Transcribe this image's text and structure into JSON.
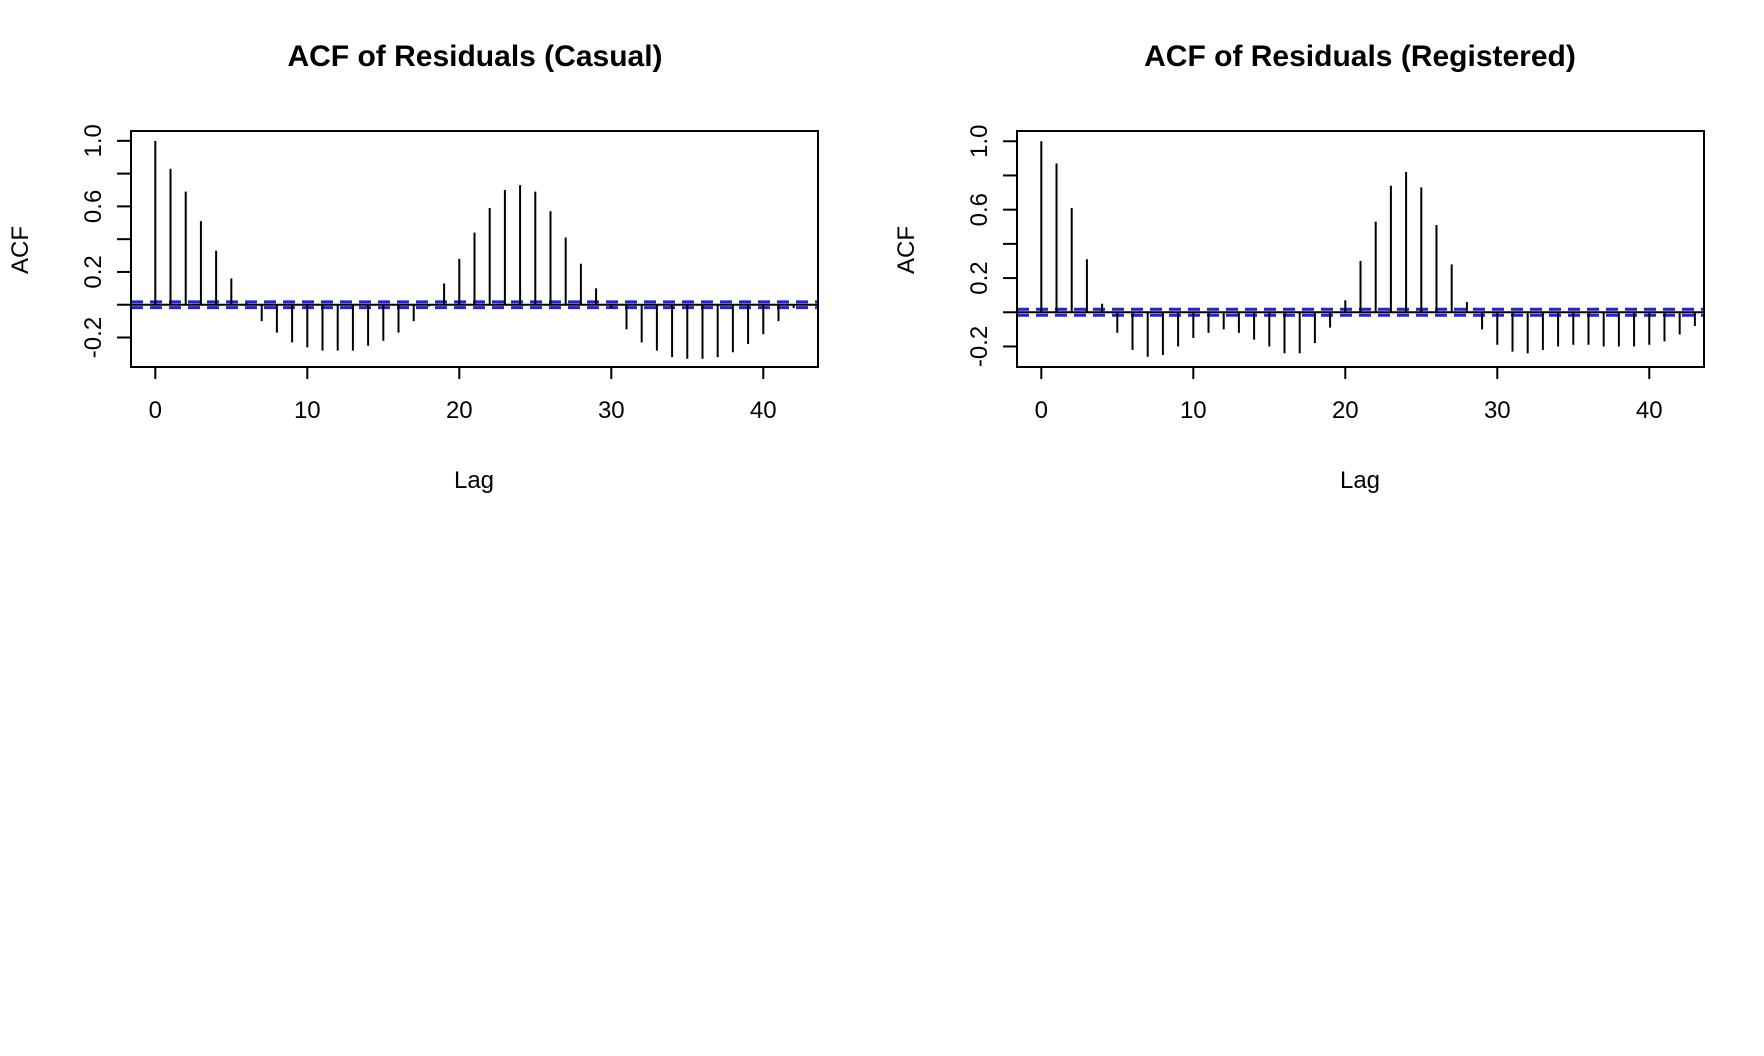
{
  "chart_data": [
    {
      "type": "bar",
      "title": "ACF of Residuals (Casual)",
      "xlabel": "Lag",
      "ylabel": "ACF",
      "xlim": [
        -1.6,
        43.6
      ],
      "ylim": [
        -0.38,
        1.06
      ],
      "x_ticks": [
        "0",
        "10",
        "20",
        "30",
        "40"
      ],
      "y_ticks": [
        "-0.2",
        "0.2",
        "0.6",
        "1.0"
      ],
      "x": [
        0,
        1,
        2,
        3,
        4,
        5,
        6,
        7,
        8,
        9,
        10,
        11,
        12,
        13,
        14,
        15,
        16,
        17,
        18,
        19,
        20,
        21,
        22,
        23,
        24,
        25,
        26,
        27,
        28,
        29,
        30,
        31,
        32,
        33,
        34,
        35,
        36,
        37,
        38,
        39,
        40,
        41,
        42,
        43
      ],
      "values": [
        1.0,
        0.83,
        0.69,
        0.51,
        0.33,
        0.16,
        0.01,
        -0.1,
        -0.17,
        -0.23,
        -0.26,
        -0.28,
        -0.28,
        -0.28,
        -0.25,
        -0.22,
        -0.17,
        -0.1,
        -0.01,
        0.13,
        0.28,
        0.44,
        0.59,
        0.7,
        0.73,
        0.69,
        0.57,
        0.41,
        0.25,
        0.1,
        -0.02,
        -0.15,
        -0.23,
        -0.28,
        -0.32,
        -0.33,
        -0.33,
        -0.32,
        -0.29,
        -0.24,
        -0.18,
        -0.1,
        -0.02,
        0.0
      ],
      "confidence_bound": 0.0175,
      "grid": false,
      "colors": {
        "bars": "#000000",
        "conf_lines": "#2222dd",
        "zero_line": "#000000"
      }
    },
    {
      "type": "bar",
      "title": "ACF of Residuals (Registered)",
      "xlabel": "Lag",
      "ylabel": "ACF",
      "xlim": [
        -1.6,
        43.6
      ],
      "ylim": [
        -0.32,
        1.06
      ],
      "x_ticks": [
        "0",
        "10",
        "20",
        "30",
        "40"
      ],
      "y_ticks": [
        "-0.2",
        "0.2",
        "0.6",
        "1.0"
      ],
      "x": [
        0,
        1,
        2,
        3,
        4,
        5,
        6,
        7,
        8,
        9,
        10,
        11,
        12,
        13,
        14,
        15,
        16,
        17,
        18,
        19,
        20,
        21,
        22,
        23,
        24,
        25,
        26,
        27,
        28,
        29,
        30,
        31,
        32,
        33,
        34,
        35,
        36,
        37,
        38,
        39,
        40,
        41,
        42,
        43
      ],
      "values": [
        1.0,
        0.87,
        0.61,
        0.31,
        0.05,
        -0.12,
        -0.22,
        -0.26,
        -0.25,
        -0.2,
        -0.15,
        -0.12,
        -0.1,
        -0.12,
        -0.16,
        -0.2,
        -0.24,
        -0.24,
        -0.18,
        -0.09,
        0.07,
        0.3,
        0.53,
        0.74,
        0.82,
        0.73,
        0.51,
        0.28,
        0.06,
        -0.1,
        -0.19,
        -0.23,
        -0.24,
        -0.22,
        -0.2,
        -0.19,
        -0.19,
        -0.2,
        -0.2,
        -0.2,
        -0.19,
        -0.17,
        -0.13,
        -0.08
      ],
      "confidence_bound": 0.0175,
      "grid": false,
      "colors": {
        "bars": "#000000",
        "conf_lines": "#2222dd",
        "zero_line": "#000000"
      }
    }
  ]
}
